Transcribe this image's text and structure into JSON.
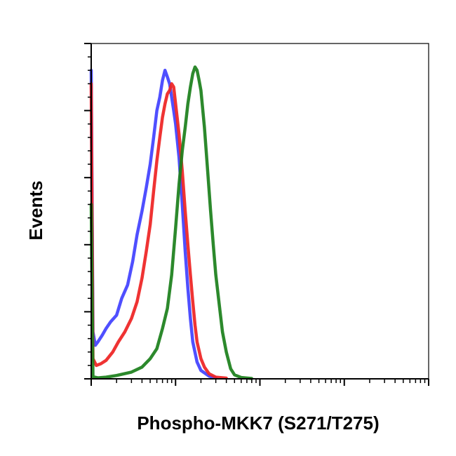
{
  "chart_data": {
    "type": "line",
    "title": "",
    "xlabel": "Phospho-MKK7 (S271/T275)",
    "ylabel": "Events",
    "x_scale": "log",
    "xlim": [
      1,
      10000
    ],
    "ylim": [
      0,
      100
    ],
    "grid": false,
    "legend": "none",
    "series": [
      {
        "color": "#4040ff",
        "x": [
          1.0,
          1.05,
          1.12,
          1.2,
          1.35,
          1.5,
          1.7,
          2.0,
          2.3,
          2.7,
          3.1,
          3.5,
          4.0,
          4.5,
          5.0,
          5.5,
          6.0,
          6.5,
          7.0,
          7.5,
          8.0,
          8.5,
          9.0,
          9.5,
          10.0,
          11.0,
          12.0,
          13.0,
          14.0,
          15.0,
          16.0,
          18.0,
          20.0,
          25.0,
          30.0
        ],
        "y": [
          92,
          14,
          10,
          11,
          13,
          15,
          17,
          19,
          24,
          28,
          35,
          43,
          50,
          57,
          64,
          72,
          80,
          84,
          89,
          92,
          90,
          88,
          84,
          80,
          76,
          66,
          52,
          38,
          27,
          18,
          11,
          5,
          2.5,
          0.8,
          0.3
        ]
      },
      {
        "color": "#ee2222",
        "x": [
          1.0,
          1.05,
          1.15,
          1.3,
          1.5,
          1.8,
          2.1,
          2.5,
          3.0,
          3.5,
          4.0,
          4.5,
          5.0,
          5.5,
          6.0,
          6.5,
          7.0,
          7.5,
          8.0,
          8.5,
          9.0,
          9.5,
          10.0,
          11.0,
          12.0,
          13.0,
          14.0,
          15.0,
          16.0,
          17.0,
          18.0,
          20.0,
          22.0,
          25.0,
          30.0,
          40.0
        ],
        "y": [
          88,
          6,
          4,
          4.5,
          5.5,
          8,
          11,
          14,
          18,
          23,
          30,
          38,
          46,
          56,
          65,
          72,
          78,
          82,
          85,
          86,
          88,
          87,
          82,
          73,
          62,
          50,
          40,
          31,
          23,
          16,
          11,
          6,
          3.5,
          1.5,
          0.5,
          0.2
        ]
      },
      {
        "color": "#1a7f1a",
        "x": [
          1.0,
          1.05,
          1.2,
          1.5,
          2.0,
          3.0,
          4.0,
          5.0,
          6.0,
          7.0,
          8.0,
          9.0,
          10.0,
          11.0,
          12.0,
          13.0,
          14.0,
          15.0,
          16.0,
          17.0,
          18.0,
          19.0,
          20.0,
          22.0,
          24.0,
          26.0,
          28.0,
          30.0,
          33.0,
          36.0,
          40.0,
          45.0,
          50.0,
          60.0,
          80.0
        ],
        "y": [
          52,
          0.6,
          0.3,
          0.5,
          1.0,
          2.0,
          3.5,
          6.0,
          9,
          15,
          21,
          31,
          45,
          58,
          68,
          75,
          82,
          87,
          91,
          93,
          92,
          89,
          86,
          75,
          62,
          50,
          40,
          31,
          22,
          14,
          8,
          3,
          1.2,
          0.4,
          0.1
        ]
      }
    ]
  }
}
